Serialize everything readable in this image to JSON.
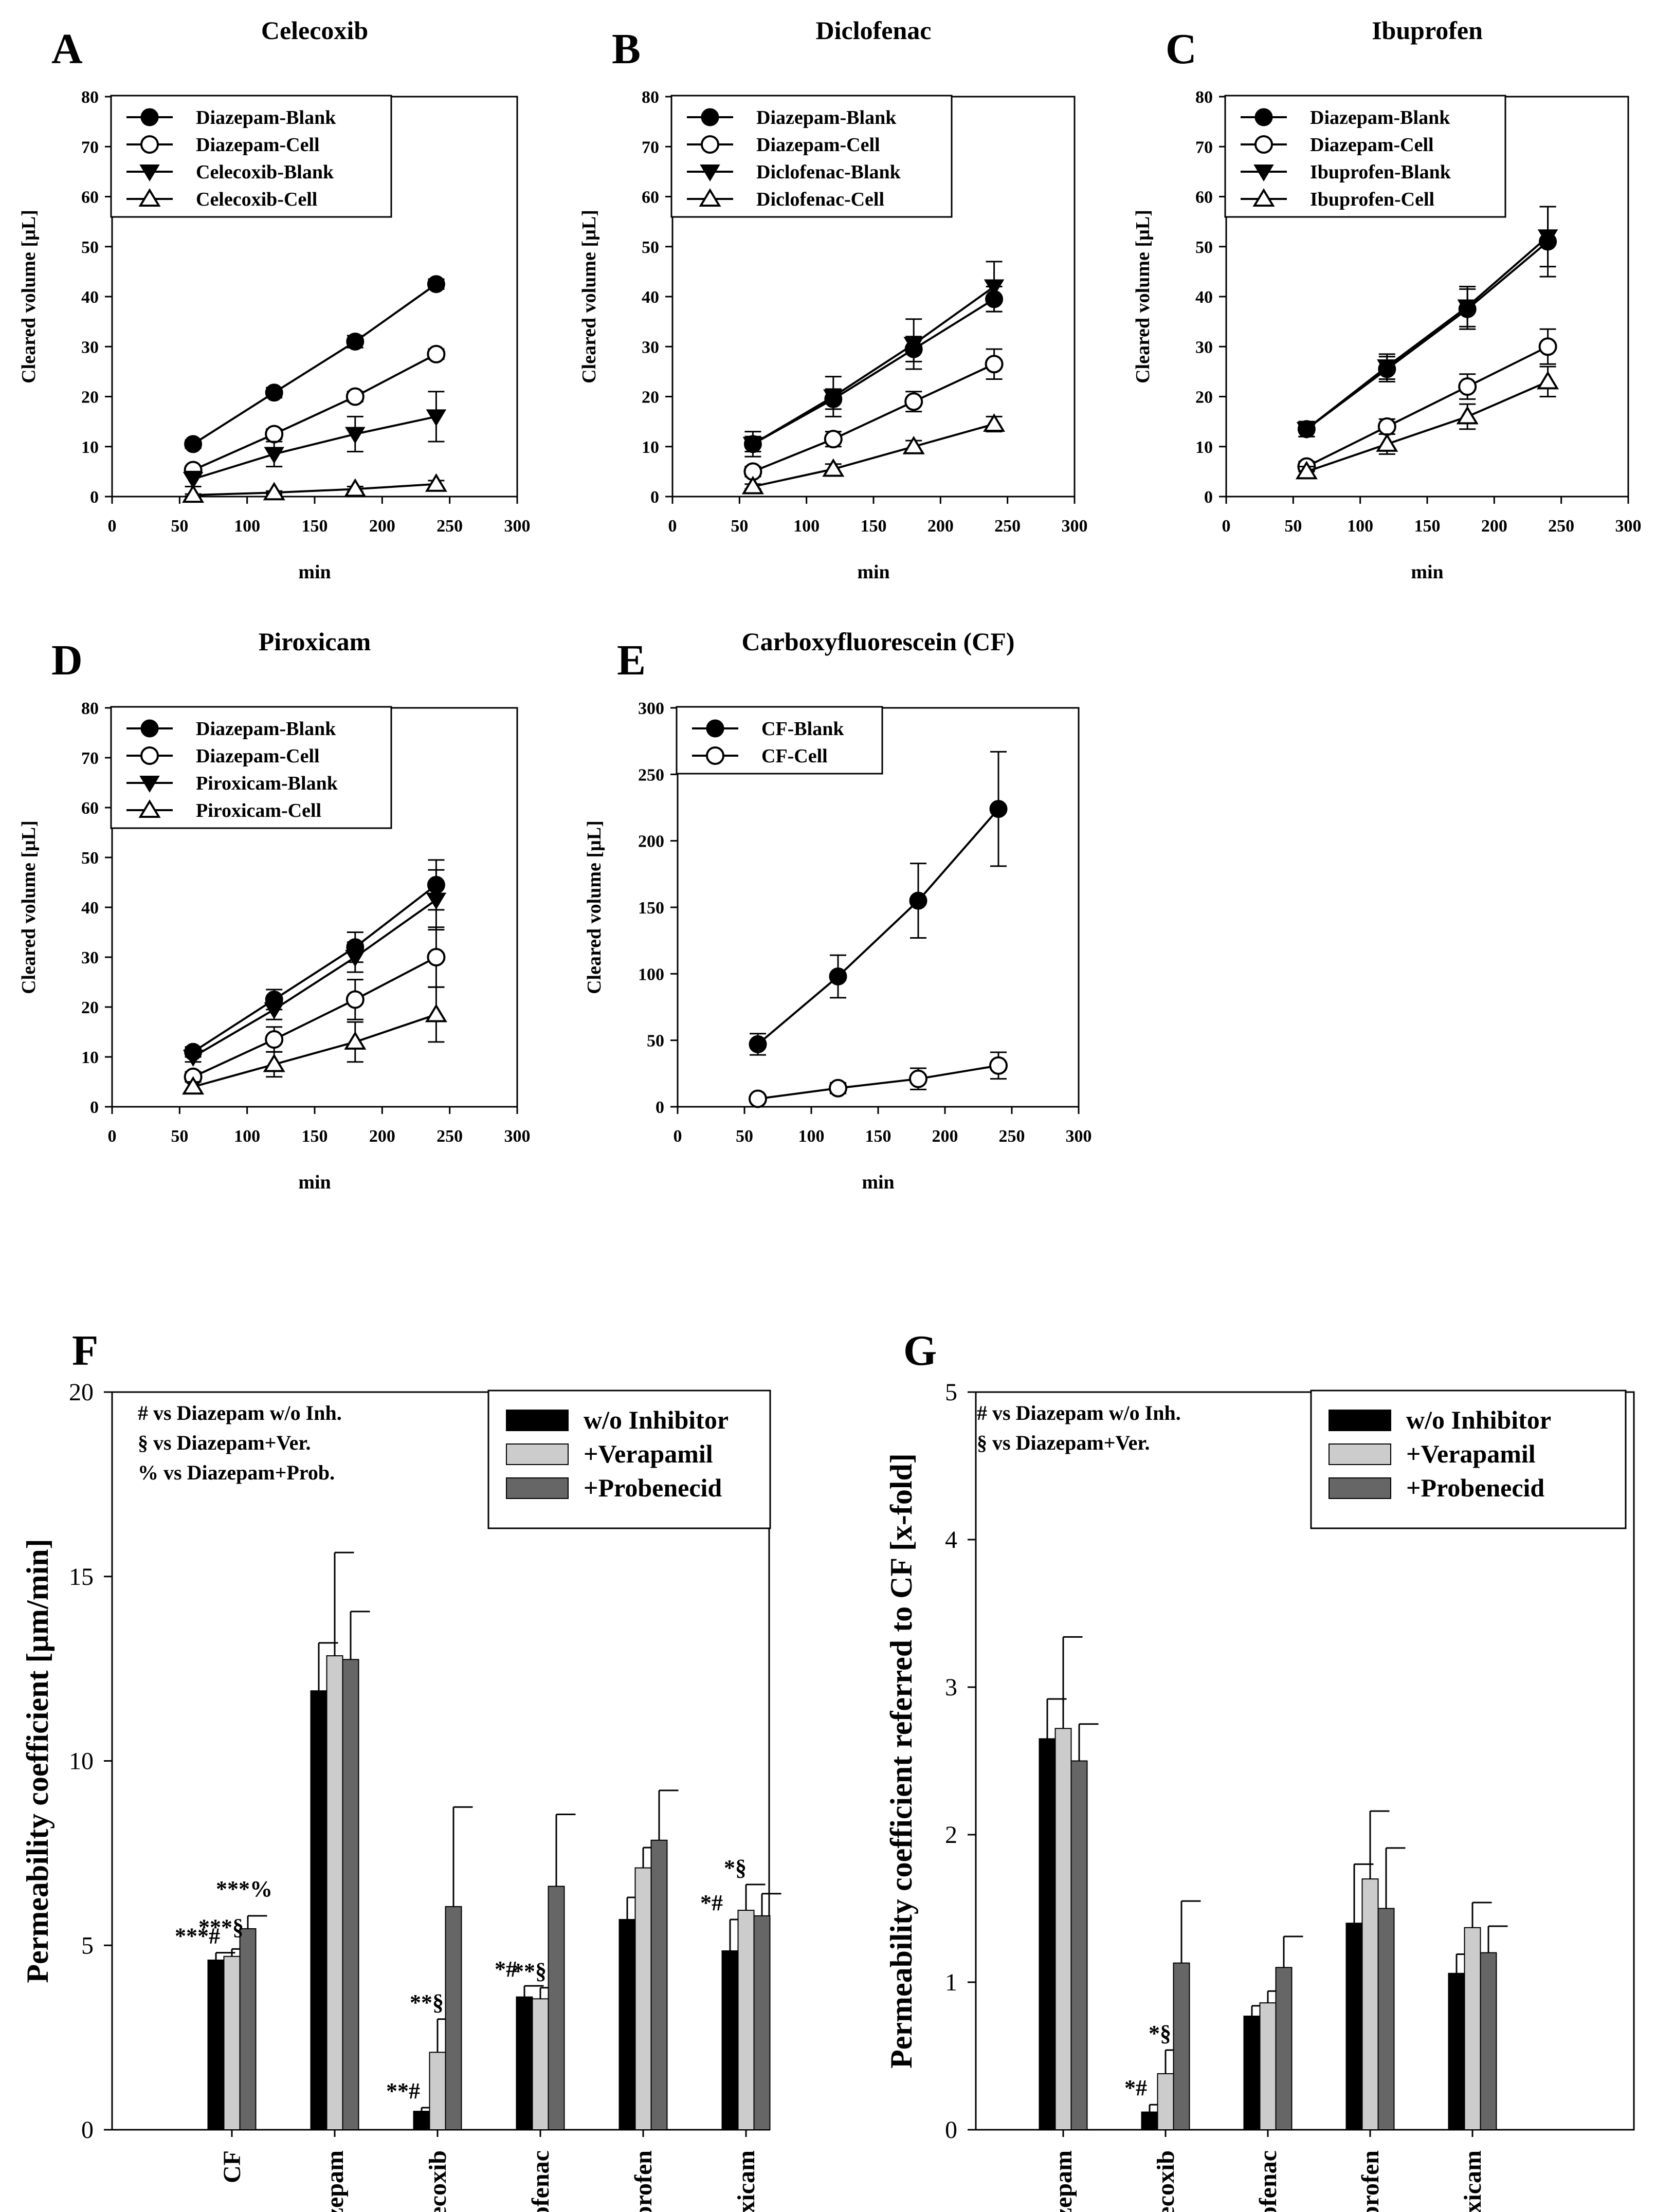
{
  "chart_data": [
    {
      "id": "A",
      "type": "line",
      "panel_letter": "A",
      "title": "Celecoxib",
      "xlabel": "min",
      "ylabel": "Cleared volume [µL]",
      "xlim": [
        0,
        300
      ],
      "ylim": [
        0,
        80
      ],
      "xticks": [
        0,
        50,
        100,
        150,
        200,
        250,
        300
      ],
      "yticks": [
        0,
        10,
        20,
        30,
        40,
        50,
        60,
        70,
        80
      ],
      "x": [
        60,
        120,
        180,
        240
      ],
      "series": [
        {
          "name": "Diazepam-Blank",
          "marker": "circle-filled",
          "values": [
            10.5,
            20.8,
            31,
            42.5
          ],
          "errors": [
            0.8,
            1,
            1.2,
            1
          ]
        },
        {
          "name": "Diazepam-Cell",
          "marker": "circle-open",
          "values": [
            5.3,
            12.5,
            20,
            28.5
          ],
          "errors": [
            0.8,
            1,
            1,
            1
          ]
        },
        {
          "name": "Celecoxib-Blank",
          "marker": "triangle-down-filled",
          "values": [
            3.5,
            8.5,
            12.5,
            16
          ],
          "errors": [
            1.5,
            2.5,
            3.5,
            5
          ]
        },
        {
          "name": "Celecoxib-Cell",
          "marker": "triangle-up-open",
          "values": [
            0.3,
            0.8,
            1.5,
            2.5
          ],
          "errors": [
            0.2,
            0.3,
            0.5,
            0.7
          ]
        }
      ]
    },
    {
      "id": "B",
      "type": "line",
      "panel_letter": "B",
      "title": "Diclofenac",
      "xlabel": "min",
      "ylabel": "Cleared volume [µL]",
      "xlim": [
        0,
        300
      ],
      "ylim": [
        0,
        80
      ],
      "xticks": [
        0,
        50,
        100,
        150,
        200,
        250,
        300
      ],
      "yticks": [
        0,
        10,
        20,
        30,
        40,
        50,
        60,
        70,
        80
      ],
      "x": [
        60,
        120,
        180,
        240
      ],
      "series": [
        {
          "name": "Diazepam-Blank",
          "marker": "circle-filled",
          "values": [
            10.5,
            19.5,
            29.5,
            39.5
          ],
          "errors": [
            1.5,
            2,
            2.5,
            2.5
          ]
        },
        {
          "name": "Diazepam-Cell",
          "marker": "circle-open",
          "values": [
            5,
            11.5,
            19,
            26.5
          ],
          "errors": [
            1,
            1.5,
            2,
            3
          ]
        },
        {
          "name": "Diclofenac-Blank",
          "marker": "triangle-down-filled",
          "values": [
            10.5,
            20,
            30.5,
            42
          ],
          "errors": [
            2.5,
            4,
            5,
            5
          ]
        },
        {
          "name": "Diclofenac-Cell",
          "marker": "triangle-up-open",
          "values": [
            2,
            5.5,
            10,
            14.5
          ],
          "errors": [
            0.5,
            1,
            1.2,
            1.5
          ]
        }
      ]
    },
    {
      "id": "C",
      "type": "line",
      "panel_letter": "C",
      "title": "Ibuprofen",
      "xlabel": "min",
      "ylabel": "Cleared volume [µL]",
      "xlim": [
        0,
        300
      ],
      "ylim": [
        0,
        80
      ],
      "xticks": [
        0,
        50,
        100,
        150,
        200,
        250,
        300
      ],
      "yticks": [
        0,
        10,
        20,
        30,
        40,
        50,
        60,
        70,
        80
      ],
      "x": [
        60,
        120,
        180,
        240
      ],
      "series": [
        {
          "name": "Diazepam-Blank",
          "marker": "circle-filled",
          "values": [
            13.5,
            25.5,
            37.5,
            51
          ],
          "errors": [
            1.5,
            2.5,
            4,
            7
          ]
        },
        {
          "name": "Diazepam-Cell",
          "marker": "circle-open",
          "values": [
            6,
            14,
            22,
            30
          ],
          "errors": [
            1,
            1.5,
            2.5,
            3.5
          ]
        },
        {
          "name": "Ibuprofen-Blank",
          "marker": "triangle-down-filled",
          "values": [
            13.5,
            26,
            38,
            52
          ],
          "errors": [
            1.5,
            2.5,
            4,
            6
          ]
        },
        {
          "name": "Ibuprofen-Cell",
          "marker": "triangle-up-open",
          "values": [
            5,
            10.5,
            16,
            23
          ],
          "errors": [
            1,
            2,
            2.5,
            3
          ]
        }
      ]
    },
    {
      "id": "D",
      "type": "line",
      "panel_letter": "D",
      "title": "Piroxicam",
      "xlabel": "min",
      "ylabel": "Cleared volume [µL]",
      "xlim": [
        0,
        300
      ],
      "ylim": [
        0,
        80
      ],
      "xticks": [
        0,
        50,
        100,
        150,
        200,
        250,
        300
      ],
      "yticks": [
        0,
        10,
        20,
        30,
        40,
        50,
        60,
        70,
        80
      ],
      "x": [
        60,
        120,
        180,
        240
      ],
      "series": [
        {
          "name": "Diazepam-Blank",
          "marker": "circle-filled",
          "values": [
            11,
            21.5,
            32,
            44.5
          ],
          "errors": [
            1,
            2,
            3,
            5
          ]
        },
        {
          "name": "Diazepam-Cell",
          "marker": "circle-open",
          "values": [
            6,
            13.5,
            21.5,
            30
          ],
          "errors": [
            1,
            2.5,
            4,
            6
          ]
        },
        {
          "name": "Piroxicam-Blank",
          "marker": "triangle-down-filled",
          "values": [
            10,
            19.5,
            30,
            41.5
          ],
          "errors": [
            1,
            2,
            3,
            6
          ]
        },
        {
          "name": "Piroxicam-Cell",
          "marker": "triangle-up-open",
          "values": [
            4,
            8.5,
            13,
            18.5
          ],
          "errors": [
            1,
            2.5,
            4,
            5.5
          ]
        }
      ]
    },
    {
      "id": "E",
      "type": "line",
      "panel_letter": "E",
      "title": "Carboxyfluorescein (CF)",
      "xlabel": "min",
      "ylabel": "Cleared volume [µL]",
      "xlim": [
        0,
        300
      ],
      "ylim": [
        0,
        300
      ],
      "xticks": [
        0,
        50,
        100,
        150,
        200,
        250,
        300
      ],
      "yticks": [
        0,
        50,
        100,
        150,
        200,
        250,
        300
      ],
      "x": [
        60,
        120,
        180,
        240
      ],
      "series": [
        {
          "name": "CF-Blank",
          "marker": "circle-filled",
          "values": [
            47,
            98,
            155,
            224
          ],
          "errors": [
            8,
            16,
            28,
            43
          ]
        },
        {
          "name": "CF-Cell",
          "marker": "circle-open",
          "values": [
            6,
            14,
            21,
            31
          ],
          "errors": [
            2,
            4,
            8,
            10
          ]
        }
      ]
    },
    {
      "id": "F",
      "type": "bar",
      "panel_letter": "F",
      "title": "",
      "xlabel": "",
      "ylabel": "Permeability coefficient [µm/min]",
      "ylim": [
        0,
        20
      ],
      "yticks": [
        0,
        5,
        10,
        15,
        20
      ],
      "categories": [
        "CF",
        "Diazepam",
        "Celecoxib",
        "Diclofenac",
        "Ibuprofen",
        "Piroxicam"
      ],
      "series": [
        {
          "name": "w/o Inhibitor",
          "color": "#000000",
          "values": [
            4.6,
            11.9,
            0.5,
            3.6,
            5.7,
            4.85
          ],
          "errors": [
            0.2,
            1.3,
            0.1,
            0.3,
            0.6,
            0.85
          ]
        },
        {
          "name": "+Verapamil",
          "color": "#cccccc",
          "values": [
            4.7,
            12.85,
            2.1,
            3.55,
            7.1,
            5.95
          ],
          "errors": [
            0.2,
            2.8,
            0.9,
            0.3,
            0.55,
            0.7
          ]
        },
        {
          "name": "+Probenecid",
          "color": "#666666",
          "values": [
            5.45,
            12.75,
            6.05,
            6.6,
            7.85,
            5.8
          ],
          "errors": [
            0.35,
            1.3,
            2.7,
            1.95,
            1.35,
            0.6
          ]
        }
      ],
      "annotations": [
        {
          "category": "CF",
          "bar": 0,
          "text": "***#"
        },
        {
          "category": "CF",
          "bar": 1,
          "text": "***§"
        },
        {
          "category": "CF",
          "bar": 2,
          "text": "***%"
        },
        {
          "category": "Celecoxib",
          "bar": 0,
          "text": "**#"
        },
        {
          "category": "Celecoxib",
          "bar": 1,
          "text": "**§"
        },
        {
          "category": "Diclofenac",
          "bar": 0,
          "text": "*#"
        },
        {
          "category": "Diclofenac",
          "bar": 1,
          "text": "**§"
        },
        {
          "category": "Piroxicam",
          "bar": 0,
          "text": "*#"
        },
        {
          "category": "Piroxicam",
          "bar": 1,
          "text": "*§"
        }
      ],
      "notes": [
        "#  vs Diazepam w/o Inh.",
        "§  vs Diazepam+Ver.",
        "% vs Diazepam+Prob."
      ]
    },
    {
      "id": "G",
      "type": "bar",
      "panel_letter": "G",
      "title": "",
      "xlabel": "",
      "ylabel": "Permeability coefficient referred to CF [x-fold]",
      "ylim": [
        0,
        5
      ],
      "yticks": [
        0,
        1,
        2,
        3,
        4,
        5
      ],
      "categories": [
        "Diazepam",
        "Celecoxib",
        "Diclofenac",
        "Ibuprofen",
        "Piroxicam"
      ],
      "series": [
        {
          "name": "w/o Inhibitor",
          "color": "#000000",
          "values": [
            2.65,
            0.12,
            0.77,
            1.4,
            1.06
          ],
          "errors": [
            0.27,
            0.05,
            0.07,
            0.4,
            0.13
          ]
        },
        {
          "name": "+Verapamil",
          "color": "#cccccc",
          "values": [
            2.72,
            0.38,
            0.86,
            1.7,
            1.37
          ],
          "errors": [
            0.62,
            0.16,
            0.08,
            0.46,
            0.17
          ]
        },
        {
          "name": "+Probenecid",
          "color": "#666666",
          "values": [
            2.5,
            1.13,
            1.1,
            1.5,
            1.2
          ],
          "errors": [
            0.25,
            0.42,
            0.21,
            0.41,
            0.18
          ]
        }
      ],
      "annotations": [
        {
          "category": "Celecoxib",
          "bar": 0,
          "text": "*#"
        },
        {
          "category": "Celecoxib",
          "bar": 1,
          "text": "*§"
        }
      ],
      "notes": [
        "#  vs Diazepam w/o Inh.",
        "§  vs Diazepam+Ver."
      ]
    }
  ]
}
